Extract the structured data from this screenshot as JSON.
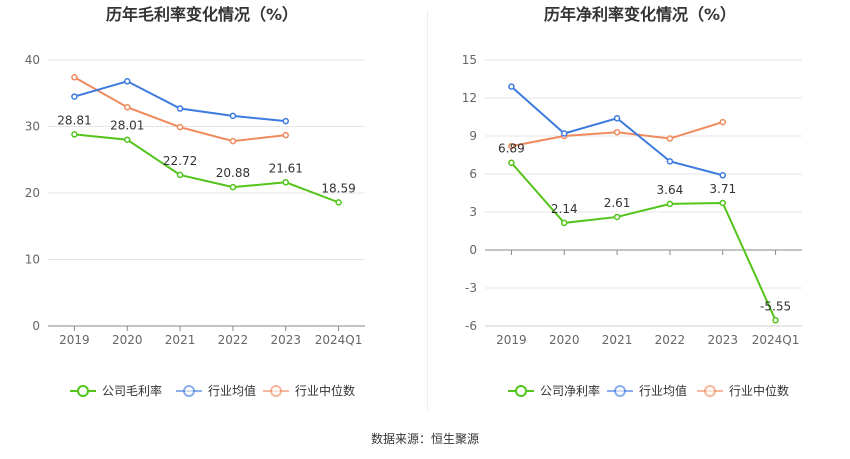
{
  "chart_data": [
    {
      "type": "line",
      "title": "历年毛利率变化情况（%）",
      "categories": [
        "2019",
        "2020",
        "2021",
        "2022",
        "2023",
        "2024Q1"
      ],
      "ylim": [
        0,
        40
      ],
      "yticks": [
        0,
        10,
        20,
        30,
        40
      ],
      "grid": true,
      "legend_position": "bottom",
      "series": [
        {
          "name": "公司毛利率",
          "color": "#52c41a",
          "values": [
            28.81,
            28.01,
            22.72,
            20.88,
            21.61,
            18.59
          ],
          "labels": [
            "28.81",
            "28.01",
            "22.72",
            "20.88",
            "21.61",
            "18.59"
          ]
        },
        {
          "name": "行业均值",
          "color": "#3d7be0",
          "values": [
            34.5,
            36.8,
            32.7,
            31.6,
            30.8,
            null
          ]
        },
        {
          "name": "行业中位数",
          "color": "#f08a5d",
          "values": [
            37.4,
            32.9,
            29.9,
            27.8,
            28.7,
            null
          ]
        }
      ]
    },
    {
      "type": "line",
      "title": "历年净利率变化情况（%）",
      "categories": [
        "2019",
        "2020",
        "2021",
        "2022",
        "2023",
        "2024Q1"
      ],
      "ylim": [
        -6,
        15
      ],
      "yticks": [
        -6,
        -3,
        0,
        3,
        6,
        9,
        12,
        15
      ],
      "grid": true,
      "legend_position": "bottom",
      "series": [
        {
          "name": "公司净利率",
          "color": "#52c41a",
          "values": [
            6.89,
            2.14,
            2.61,
            3.64,
            3.71,
            -5.55
          ],
          "labels": [
            "6.89",
            "2.14",
            "2.61",
            "3.64",
            "3.71",
            "-5.55"
          ]
        },
        {
          "name": "行业均值",
          "color": "#3d7be0",
          "values": [
            12.9,
            9.2,
            10.4,
            7.0,
            5.9,
            null
          ]
        },
        {
          "name": "行业中位数",
          "color": "#f08a5d",
          "values": [
            8.2,
            9.0,
            9.3,
            8.8,
            10.1,
            null
          ]
        }
      ]
    }
  ],
  "footer": {
    "source": "数据来源：恒生聚源"
  }
}
